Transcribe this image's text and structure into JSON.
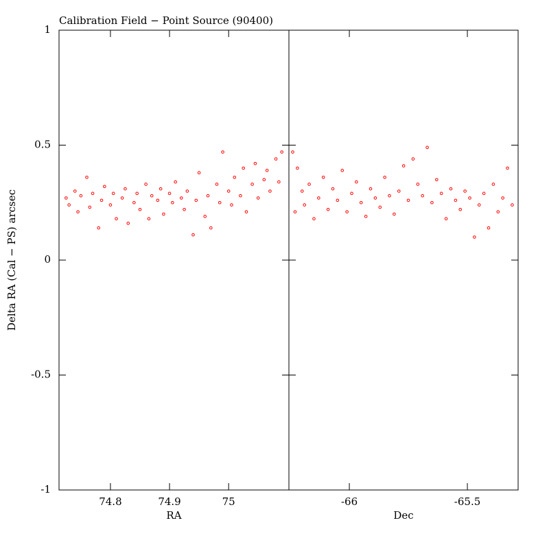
{
  "chart_data": [
    {
      "type": "scatter",
      "title": "Calibration Field − Point Source (90400)",
      "ylabel": "Delta RA (Cal − PS) arcsec",
      "xlabel": "RA",
      "color": "#ff0000",
      "xlim": [
        74.713,
        75.102
      ],
      "xticks": [
        74.8,
        74.9,
        75
      ],
      "ylim": [
        -1,
        1
      ],
      "yticks": [
        -1,
        -0.5,
        0,
        0.5,
        1
      ],
      "x": [
        74.725,
        74.73,
        74.74,
        74.745,
        74.75,
        74.76,
        74.765,
        74.77,
        74.78,
        74.785,
        74.79,
        74.8,
        74.805,
        74.81,
        74.82,
        74.825,
        74.83,
        74.84,
        74.845,
        74.85,
        74.86,
        74.865,
        74.87,
        74.88,
        74.885,
        74.89,
        74.9,
        74.905,
        74.91,
        74.92,
        74.925,
        74.93,
        74.94,
        74.945,
        74.95,
        74.96,
        74.965,
        74.97,
        74.98,
        74.985,
        74.99,
        75.0,
        75.005,
        75.01,
        75.02,
        75.025,
        75.03,
        75.04,
        75.045,
        75.05,
        75.06,
        75.065,
        75.07,
        75.08,
        75.085,
        75.09
      ],
      "values": [
        0.27,
        0.24,
        0.3,
        0.21,
        0.28,
        0.36,
        0.23,
        0.29,
        0.14,
        0.26,
        0.32,
        0.24,
        0.29,
        0.18,
        0.27,
        0.31,
        0.16,
        0.25,
        0.29,
        0.22,
        0.33,
        0.18,
        0.28,
        0.26,
        0.31,
        0.2,
        0.29,
        0.25,
        0.34,
        0.27,
        0.22,
        0.3,
        0.11,
        0.26,
        0.38,
        0.19,
        0.28,
        0.14,
        0.33,
        0.25,
        0.47,
        0.3,
        0.24,
        0.36,
        0.28,
        0.4,
        0.21,
        0.33,
        0.42,
        0.27,
        0.35,
        0.39,
        0.3,
        0.44,
        0.34,
        0.47
      ]
    },
    {
      "type": "scatter",
      "xlabel": "Dec",
      "color": "#ff0000",
      "xlim": [
        -66.256,
        -65.285
      ],
      "xticks": [
        -66,
        -65.5
      ],
      "ylim": [
        -1,
        1
      ],
      "yticks": [
        -1,
        -0.5,
        0,
        0.5,
        1
      ],
      "x": [
        -66.24,
        -66.23,
        -66.22,
        -66.2,
        -66.19,
        -66.17,
        -66.15,
        -66.13,
        -66.11,
        -66.09,
        -66.07,
        -66.05,
        -66.03,
        -66.01,
        -65.99,
        -65.97,
        -65.95,
        -65.93,
        -65.91,
        -65.89,
        -65.87,
        -65.85,
        -65.83,
        -65.81,
        -65.79,
        -65.77,
        -65.75,
        -65.73,
        -65.71,
        -65.69,
        -65.67,
        -65.65,
        -65.63,
        -65.61,
        -65.59,
        -65.57,
        -65.55,
        -65.53,
        -65.51,
        -65.49,
        -65.47,
        -65.45,
        -65.43,
        -65.41,
        -65.39,
        -65.37,
        -65.35,
        -65.33,
        -65.31
      ],
      "values": [
        0.47,
        0.21,
        0.4,
        0.3,
        0.24,
        0.33,
        0.18,
        0.27,
        0.36,
        0.22,
        0.31,
        0.26,
        0.39,
        0.21,
        0.29,
        0.34,
        0.25,
        0.19,
        0.31,
        0.27,
        0.23,
        0.36,
        0.28,
        0.2,
        0.3,
        0.41,
        0.26,
        0.44,
        0.33,
        0.28,
        0.49,
        0.25,
        0.35,
        0.29,
        0.18,
        0.31,
        0.26,
        0.22,
        0.3,
        0.27,
        0.1,
        0.24,
        0.29,
        0.14,
        0.33,
        0.21,
        0.27,
        0.4,
        0.24
      ]
    }
  ]
}
